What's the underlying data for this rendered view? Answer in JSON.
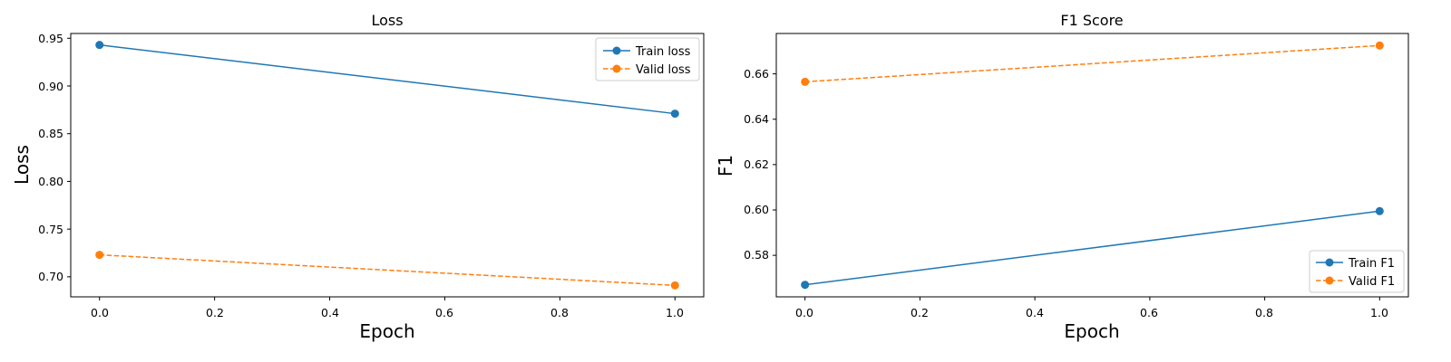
{
  "chart_data": [
    {
      "type": "line",
      "title": "Loss",
      "xlabel": "Epoch",
      "ylabel": "Loss",
      "x": [
        0,
        1
      ],
      "xlim": [
        -0.05,
        1.05
      ],
      "ylim": [
        0.679,
        0.955
      ],
      "xticks": [
        "0.0",
        "0.2",
        "0.4",
        "0.6",
        "0.8",
        "1.0"
      ],
      "yticks": [
        "0.70",
        "0.75",
        "0.80",
        "0.85",
        "0.90",
        "0.95"
      ],
      "legend": "top-right",
      "grid": false,
      "series": [
        {
          "name": "Train loss",
          "values": [
            0.943,
            0.871
          ],
          "color": "#1f77b4",
          "style": "solid"
        },
        {
          "name": "Valid loss",
          "values": [
            0.723,
            0.691
          ],
          "color": "#ff7f0e",
          "style": "dashed"
        }
      ]
    },
    {
      "type": "line",
      "title": "F1 Score",
      "xlabel": "Epoch",
      "ylabel": "F1",
      "x": [
        0,
        1
      ],
      "xlim": [
        -0.05,
        1.05
      ],
      "ylim": [
        0.5617,
        0.6778
      ],
      "xticks": [
        "0.0",
        "0.2",
        "0.4",
        "0.6",
        "0.8",
        "1.0"
      ],
      "yticks": [
        "0.58",
        "0.60",
        "0.62",
        "0.64",
        "0.66"
      ],
      "legend": "bottom-right",
      "grid": false,
      "series": [
        {
          "name": "Train F1",
          "values": [
            0.567,
            0.5995
          ],
          "color": "#1f77b4",
          "style": "solid"
        },
        {
          "name": "Valid F1",
          "values": [
            0.6565,
            0.6725
          ],
          "color": "#ff7f0e",
          "style": "dashed"
        }
      ]
    }
  ]
}
